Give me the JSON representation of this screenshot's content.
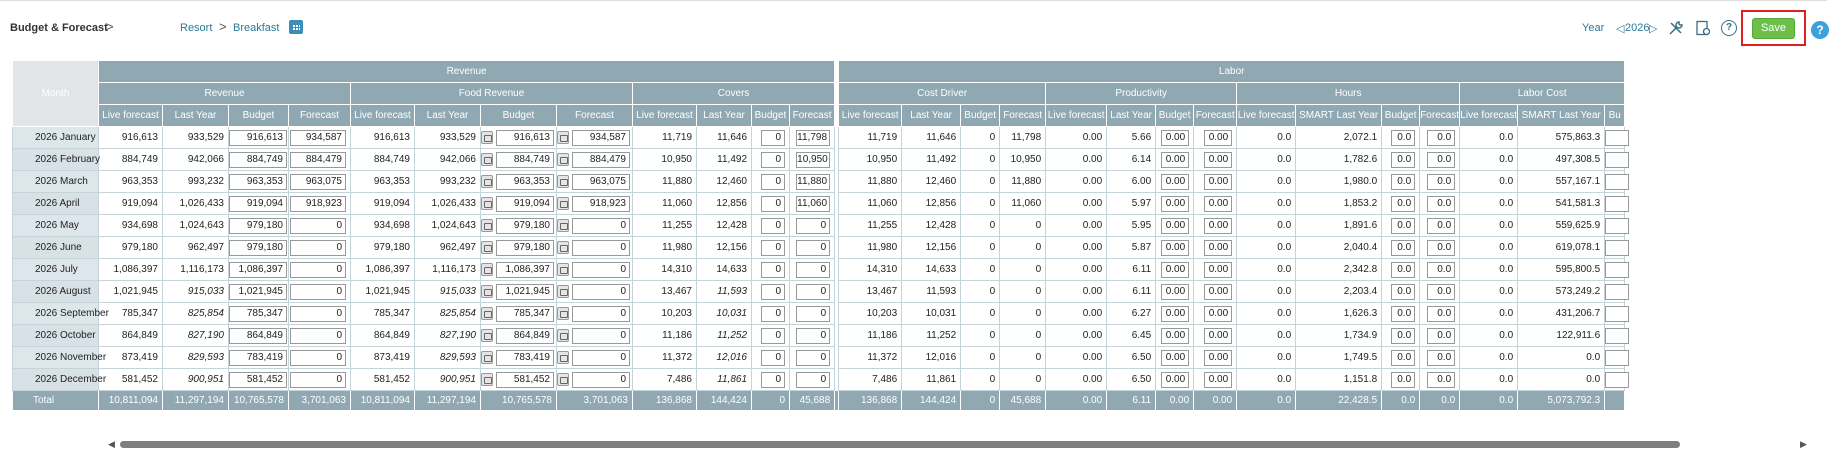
{
  "breadcrumb": {
    "title": "Budget & Forecast",
    "sep": ">",
    "resort": "Resort",
    "breakfast": "Breakfast"
  },
  "year": {
    "label": "Year",
    "prev": "◁",
    "value": "2026",
    "next": "▷"
  },
  "toolbar": {
    "save_label": "Save",
    "help_glyph": "?",
    "blue_help_glyph": "?"
  },
  "icons": [
    "calendar-icon",
    "tools-icon",
    "report-icon",
    "help-icon",
    "padlock-icon"
  ],
  "colors": {
    "header": "#8fa8b2",
    "save": "#6cc04a",
    "highlight": "#e0201c",
    "link": "#2a7b9b"
  },
  "table": {
    "month_header": "Month",
    "groups": [
      {
        "label": "Revenue"
      },
      {
        "label": "Labor"
      }
    ],
    "subgroups": [
      "Revenue",
      "Food Revenue",
      "Covers",
      "Cost Driver",
      "Productivity",
      "Hours",
      "Labor Cost"
    ],
    "columns": [
      "Live forecast",
      "Last Year",
      "Budget",
      "Forecast",
      "Live forecast",
      "Last Year",
      "Budget",
      "Forecast",
      "Live forecast",
      "Last Year",
      "Budget",
      "Forecast",
      "Live forecast",
      "Last Year",
      "Budget",
      "Forecast",
      "Live forecast",
      "Last Year",
      "Budget",
      "Forecast",
      "Live forecast",
      "SMART Last Year",
      "Budget",
      "Forecast",
      "Live forecast",
      "SMART Last Year",
      "Bu"
    ],
    "rows": [
      {
        "month": "2026 January",
        "c": [
          "916,613",
          "933,529",
          "916,613",
          "934,587",
          "916,613",
          "933,529",
          "916,613",
          "934,587",
          "11,719",
          "11,646",
          "0",
          "11,798",
          "11,719",
          "11,646",
          "0",
          "11,798",
          "0.00",
          "5.66",
          "0.00",
          "0.00",
          "0.0",
          "2,072.1",
          "0.0",
          "0.0",
          "0.0",
          "575,863.3",
          ""
        ]
      },
      {
        "month": "2026 February",
        "c": [
          "884,749",
          "942,066",
          "884,749",
          "884,479",
          "884,749",
          "942,066",
          "884,749",
          "884,479",
          "10,950",
          "11,492",
          "0",
          "10,950",
          "10,950",
          "11,492",
          "0",
          "10,950",
          "0.00",
          "6.14",
          "0.00",
          "0.00",
          "0.0",
          "1,782.6",
          "0.0",
          "0.0",
          "0.0",
          "497,308.5",
          ""
        ]
      },
      {
        "month": "2026 March",
        "c": [
          "963,353",
          "993,232",
          "963,353",
          "963,075",
          "963,353",
          "993,232",
          "963,353",
          "963,075",
          "11,880",
          "12,460",
          "0",
          "11,880",
          "11,880",
          "12,460",
          "0",
          "11,880",
          "0.00",
          "6.00",
          "0.00",
          "0.00",
          "0.0",
          "1,980.0",
          "0.0",
          "0.0",
          "0.0",
          "557,167.1",
          ""
        ]
      },
      {
        "month": "2026 April",
        "c": [
          "919,094",
          "1,026,433",
          "919,094",
          "918,923",
          "919,094",
          "1,026,433",
          "919,094",
          "918,923",
          "11,060",
          "12,856",
          "0",
          "11,060",
          "11,060",
          "12,856",
          "0",
          "11,060",
          "0.00",
          "5.97",
          "0.00",
          "0.00",
          "0.0",
          "1,853.2",
          "0.0",
          "0.0",
          "0.0",
          "541,581.3",
          ""
        ]
      },
      {
        "month": "2026 May",
        "c": [
          "934,698",
          "1,024,643",
          "979,180",
          "0",
          "934,698",
          "1,024,643",
          "979,180",
          "0",
          "11,255",
          "12,428",
          "0",
          "0",
          "11,255",
          "12,428",
          "0",
          "0",
          "0.00",
          "5.95",
          "0.00",
          "0.00",
          "0.0",
          "1,891.6",
          "0.0",
          "0.0",
          "0.0",
          "559,625.9",
          ""
        ]
      },
      {
        "month": "2026 June",
        "c": [
          "979,180",
          "962,497",
          "979,180",
          "0",
          "979,180",
          "962,497",
          "979,180",
          "0",
          "11,980",
          "12,156",
          "0",
          "0",
          "11,980",
          "12,156",
          "0",
          "0",
          "0.00",
          "5.87",
          "0.00",
          "0.00",
          "0.0",
          "2,040.4",
          "0.0",
          "0.0",
          "0.0",
          "619,078.1",
          ""
        ]
      },
      {
        "month": "2026 July",
        "c": [
          "1,086,397",
          "1,116,173",
          "1,086,397",
          "0",
          "1,086,397",
          "1,116,173",
          "1,086,397",
          "0",
          "14,310",
          "14,633",
          "0",
          "0",
          "14,310",
          "14,633",
          "0",
          "0",
          "0.00",
          "6.11",
          "0.00",
          "0.00",
          "0.0",
          "2,342.8",
          "0.0",
          "0.0",
          "0.0",
          "595,800.5",
          ""
        ]
      },
      {
        "month": "2026 August",
        "c": [
          "1,021,945",
          "915,033",
          "1,021,945",
          "0",
          "1,021,945",
          "915,033",
          "1,021,945",
          "0",
          "13,467",
          "11,593",
          "0",
          "0",
          "13,467",
          "11,593",
          "0",
          "0",
          "0.00",
          "6.11",
          "0.00",
          "0.00",
          "0.0",
          "2,203.4",
          "0.0",
          "0.0",
          "0.0",
          "573,249.2",
          ""
        ]
      },
      {
        "month": "2026 September",
        "c": [
          "785,347",
          "825,854",
          "785,347",
          "0",
          "785,347",
          "825,854",
          "785,347",
          "0",
          "10,203",
          "10,031",
          "0",
          "0",
          "10,203",
          "10,031",
          "0",
          "0",
          "0.00",
          "6.27",
          "0.00",
          "0.00",
          "0.0",
          "1,626.3",
          "0.0",
          "0.0",
          "0.0",
          "431,206.7",
          ""
        ]
      },
      {
        "month": "2026 October",
        "c": [
          "864,849",
          "827,190",
          "864,849",
          "0",
          "864,849",
          "827,190",
          "864,849",
          "0",
          "11,186",
          "11,252",
          "0",
          "0",
          "11,186",
          "11,252",
          "0",
          "0",
          "0.00",
          "6.45",
          "0.00",
          "0.00",
          "0.0",
          "1,734.9",
          "0.0",
          "0.0",
          "0.0",
          "122,911.6",
          ""
        ]
      },
      {
        "month": "2026 November",
        "c": [
          "873,419",
          "829,593",
          "783,419",
          "0",
          "873,419",
          "829,593",
          "783,419",
          "0",
          "11,372",
          "12,016",
          "0",
          "0",
          "11,372",
          "12,016",
          "0",
          "0",
          "0.00",
          "6.50",
          "0.00",
          "0.00",
          "0.0",
          "1,749.5",
          "0.0",
          "0.0",
          "0.0",
          "0.0",
          ""
        ]
      },
      {
        "month": "2026 December",
        "c": [
          "581,452",
          "900,951",
          "581,452",
          "0",
          "581,452",
          "900,951",
          "581,452",
          "0",
          "7,486",
          "11,861",
          "0",
          "0",
          "7,486",
          "11,861",
          "0",
          "0",
          "0.00",
          "6.50",
          "0.00",
          "0.00",
          "0.0",
          "1,151.8",
          "0.0",
          "0.0",
          "0.0",
          "0.0",
          ""
        ]
      }
    ],
    "italic_last_year_months": [
      "2026 August",
      "2026 September",
      "2026 October",
      "2026 November",
      "2026 December"
    ],
    "total": {
      "month": "Total",
      "c": [
        "10,811,094",
        "11,297,194",
        "10,765,578",
        "3,701,063",
        "10,811,094",
        "11,297,194",
        "10,765,578",
        "3,701,063",
        "136,868",
        "144,424",
        "0",
        "45,688",
        "136,868",
        "144,424",
        "0",
        "45,688",
        "0.00",
        "6.11",
        "0.00",
        "0.00",
        "0.0",
        "22,428.5",
        "0.0",
        "0.0",
        "0.0",
        "5,073,792.3",
        ""
      ]
    }
  },
  "scrollbar": {
    "left": "◀",
    "right": "▶"
  }
}
